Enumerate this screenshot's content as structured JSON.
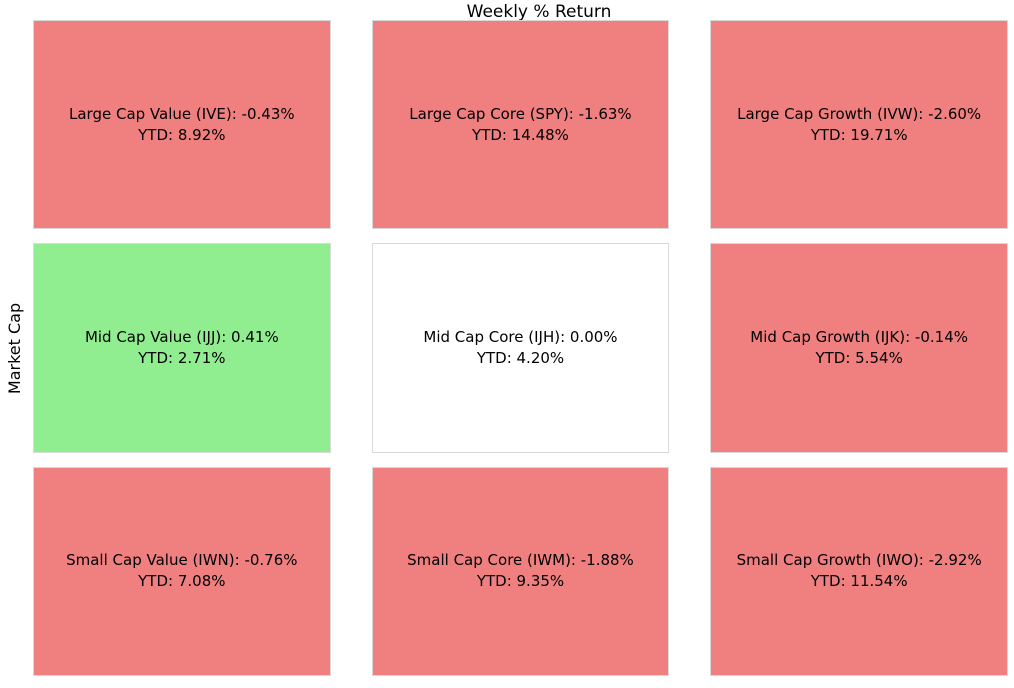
{
  "chart_data": {
    "type": "heatmap",
    "title": "Weekly % Return",
    "xlabel": "",
    "ylabel": "Market Cap",
    "rows": [
      "Large Cap",
      "Mid Cap",
      "Small Cap"
    ],
    "columns": [
      "Value",
      "Core",
      "Growth"
    ],
    "legend": "none",
    "grid": "off",
    "color_rules": {
      "negative_weekly": "#f08080",
      "positive_weekly": "#90ee90",
      "zero_weekly": "#ffffff",
      "cell_border": "#d9d9d9",
      "text": "#000000"
    },
    "cells": [
      {
        "name": "Large Cap Value",
        "ticker": "IVE",
        "weekly_return_pct": -0.43,
        "ytd_return_pct": 8.92,
        "line1": "Large Cap Value (IVE): -0.43%",
        "line2": "YTD: 8.92%",
        "bg_color": "#f08080"
      },
      {
        "name": "Large Cap Core",
        "ticker": "SPY",
        "weekly_return_pct": -1.63,
        "ytd_return_pct": 14.48,
        "line1": "Large Cap Core (SPY): -1.63%",
        "line2": "YTD: 14.48%",
        "bg_color": "#f08080"
      },
      {
        "name": "Large Cap Growth",
        "ticker": "IVW",
        "weekly_return_pct": -2.6,
        "ytd_return_pct": 19.71,
        "line1": "Large Cap Growth (IVW): -2.60%",
        "line2": "YTD: 19.71%",
        "bg_color": "#f08080"
      },
      {
        "name": "Mid Cap Value",
        "ticker": "IJJ",
        "weekly_return_pct": 0.41,
        "ytd_return_pct": 2.71,
        "line1": "Mid Cap Value (IJJ): 0.41%",
        "line2": "YTD: 2.71%",
        "bg_color": "#90ee90"
      },
      {
        "name": "Mid Cap Core",
        "ticker": "IJH",
        "weekly_return_pct": 0.0,
        "ytd_return_pct": 4.2,
        "line1": "Mid Cap Core (IJH): 0.00%",
        "line2": "YTD: 4.20%",
        "bg_color": "#ffffff"
      },
      {
        "name": "Mid Cap Growth",
        "ticker": "IJK",
        "weekly_return_pct": -0.14,
        "ytd_return_pct": 5.54,
        "line1": "Mid Cap Growth (IJK): -0.14%",
        "line2": "YTD: 5.54%",
        "bg_color": "#f08080"
      },
      {
        "name": "Small Cap Value",
        "ticker": "IWN",
        "weekly_return_pct": -0.76,
        "ytd_return_pct": 7.08,
        "line1": "Small Cap Value (IWN): -0.76%",
        "line2": "YTD: 7.08%",
        "bg_color": "#f08080"
      },
      {
        "name": "Small Cap Core",
        "ticker": "IWM",
        "weekly_return_pct": -1.88,
        "ytd_return_pct": 9.35,
        "line1": "Small Cap Core (IWM): -1.88%",
        "line2": "YTD: 9.35%",
        "bg_color": "#f08080"
      },
      {
        "name": "Small Cap Growth",
        "ticker": "IWO",
        "weekly_return_pct": -2.92,
        "ytd_return_pct": 11.54,
        "line1": "Small Cap Growth (IWO): -2.92%",
        "line2": "YTD: 11.54%",
        "bg_color": "#f08080"
      }
    ]
  }
}
